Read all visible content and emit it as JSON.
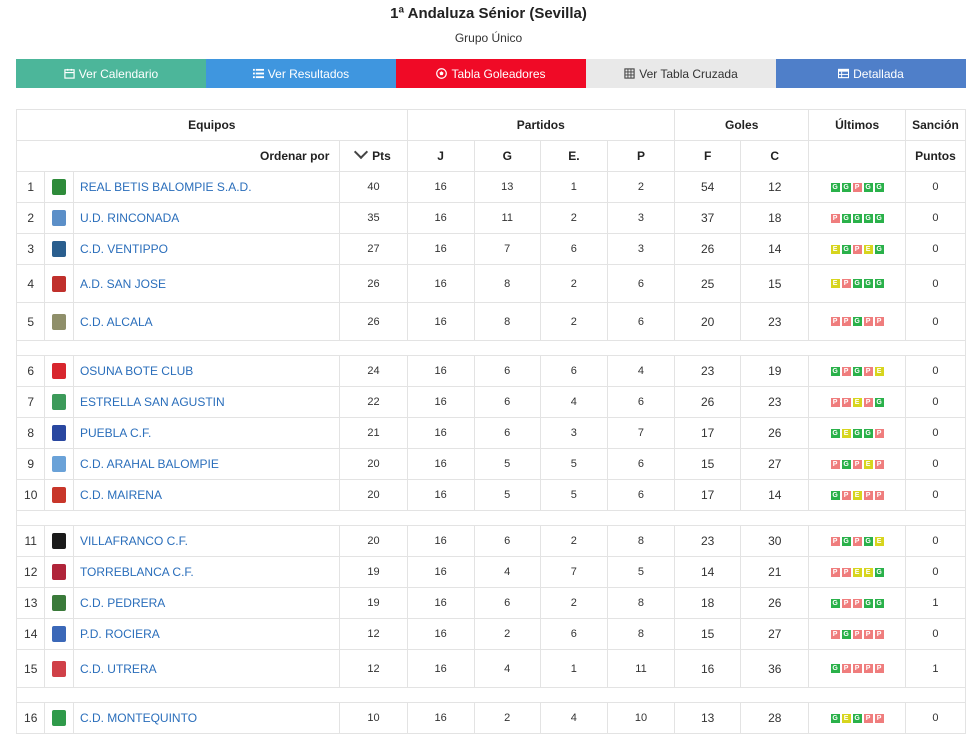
{
  "page": {
    "title": "1ª Andaluza Sénior (Sevilla)",
    "subtitle": "Grupo Único"
  },
  "buttons": [
    {
      "label": "Ver Calendario",
      "icon": "calendar-icon",
      "color": "#4cb69a"
    },
    {
      "label": "Ver Resultados",
      "icon": "list-icon",
      "color": "#3f96df"
    },
    {
      "label": "Tabla Goleadores",
      "icon": "soccer-ball-icon",
      "color": "#f00a26"
    },
    {
      "label": "Ver Tabla Cruzada",
      "icon": "grid-icon",
      "color": "#e9e9e9"
    },
    {
      "label": "Detallada",
      "icon": "table-icon",
      "color": "#4f7fc9"
    }
  ],
  "table": {
    "group_headers": {
      "equipos": "Equipos",
      "partidos": "Partidos",
      "goles": "Goles",
      "ultimos": "Últimos",
      "sancion": "Sanción"
    },
    "sub_headers": {
      "ordenar": "Ordenar por",
      "pts": "Pts",
      "j": "J",
      "g": "G",
      "e": "E.",
      "p": "P",
      "f": "F",
      "c": "C",
      "puntos": "Puntos"
    },
    "form_colors": {
      "G": "#2ab14a",
      "E": "#d7d51e",
      "P": "#ef7d7d"
    },
    "rows": [
      {
        "pos": "1",
        "team": "REAL BETIS BALOMPIE S.A.D.",
        "crest": "#2e8b3a",
        "pts": "40",
        "j": "16",
        "g": "13",
        "e": "1",
        "p": "2",
        "f": "54",
        "c": "12",
        "form": [
          "G",
          "G",
          "P",
          "G",
          "G"
        ],
        "sancion": "0"
      },
      {
        "pos": "2",
        "team": "U.D. RINCONADA",
        "crest": "#5b8fc8",
        "pts": "35",
        "j": "16",
        "g": "11",
        "e": "2",
        "p": "3",
        "f": "37",
        "c": "18",
        "form": [
          "P",
          "G",
          "G",
          "G",
          "G"
        ],
        "sancion": "0"
      },
      {
        "pos": "3",
        "team": "C.D. VENTIPPO",
        "crest": "#2a5e8e",
        "pts": "27",
        "j": "16",
        "g": "7",
        "e": "6",
        "p": "3",
        "f": "26",
        "c": "14",
        "form": [
          "E",
          "G",
          "P",
          "E",
          "G"
        ],
        "sancion": "0"
      },
      {
        "pos": "4",
        "team": "A.D. SAN JOSE",
        "crest": "#c0302c",
        "pts": "26",
        "j": "16",
        "g": "8",
        "e": "2",
        "p": "6",
        "f": "25",
        "c": "15",
        "form": [
          "E",
          "P",
          "G",
          "G",
          "G"
        ],
        "sancion": "0"
      },
      {
        "pos": "5",
        "team": "C.D. ALCALA",
        "crest": "#8f8f6a",
        "pts": "26",
        "j": "16",
        "g": "8",
        "e": "2",
        "p": "6",
        "f": "20",
        "c": "23",
        "form": [
          "P",
          "P",
          "G",
          "P",
          "P"
        ],
        "sancion": "0"
      },
      {
        "pos": "6",
        "team": "OSUNA BOTE CLUB",
        "crest": "#d8262e",
        "pts": "24",
        "j": "16",
        "g": "6",
        "e": "6",
        "p": "4",
        "f": "23",
        "c": "19",
        "form": [
          "G",
          "P",
          "G",
          "P",
          "E"
        ],
        "sancion": "0"
      },
      {
        "pos": "7",
        "team": "ESTRELLA SAN AGUSTIN",
        "crest": "#3c9a5a",
        "pts": "22",
        "j": "16",
        "g": "6",
        "e": "4",
        "p": "6",
        "f": "26",
        "c": "23",
        "form": [
          "P",
          "P",
          "E",
          "P",
          "G"
        ],
        "sancion": "0"
      },
      {
        "pos": "8",
        "team": "PUEBLA C.F.",
        "crest": "#2947a0",
        "pts": "21",
        "j": "16",
        "g": "6",
        "e": "3",
        "p": "7",
        "f": "17",
        "c": "26",
        "form": [
          "G",
          "E",
          "G",
          "G",
          "P"
        ],
        "sancion": "0"
      },
      {
        "pos": "9",
        "team": "C.D. ARAHAL BALOMPIE",
        "crest": "#6aa2d8",
        "pts": "20",
        "j": "16",
        "g": "5",
        "e": "5",
        "p": "6",
        "f": "15",
        "c": "27",
        "form": [
          "P",
          "G",
          "P",
          "E",
          "P"
        ],
        "sancion": "0"
      },
      {
        "pos": "10",
        "team": "C.D. MAIRENA",
        "crest": "#c8362a",
        "pts": "20",
        "j": "16",
        "g": "5",
        "e": "5",
        "p": "6",
        "f": "17",
        "c": "14",
        "form": [
          "G",
          "P",
          "E",
          "P",
          "P"
        ],
        "sancion": "0"
      },
      {
        "pos": "11",
        "team": "VILLAFRANCO C.F.",
        "crest": "#1a1a1a",
        "pts": "20",
        "j": "16",
        "g": "6",
        "e": "2",
        "p": "8",
        "f": "23",
        "c": "30",
        "form": [
          "P",
          "G",
          "P",
          "G",
          "E"
        ],
        "sancion": "0"
      },
      {
        "pos": "12",
        "team": "TORREBLANCA C.F.",
        "crest": "#b0243a",
        "pts": "19",
        "j": "16",
        "g": "4",
        "e": "7",
        "p": "5",
        "f": "14",
        "c": "21",
        "form": [
          "P",
          "P",
          "E",
          "E",
          "G"
        ],
        "sancion": "0"
      },
      {
        "pos": "13",
        "team": "C.D. PEDRERA",
        "crest": "#3a7a3a",
        "pts": "19",
        "j": "16",
        "g": "6",
        "e": "2",
        "p": "8",
        "f": "18",
        "c": "26",
        "form": [
          "G",
          "P",
          "P",
          "G",
          "G"
        ],
        "sancion": "1"
      },
      {
        "pos": "14",
        "team": "P.D. ROCIERA",
        "crest": "#3b68b8",
        "pts": "12",
        "j": "16",
        "g": "2",
        "e": "6",
        "p": "8",
        "f": "15",
        "c": "27",
        "form": [
          "P",
          "G",
          "P",
          "P",
          "P"
        ],
        "sancion": "0"
      },
      {
        "pos": "15",
        "team": "C.D. UTRERA",
        "crest": "#d04048",
        "pts": "12",
        "j": "16",
        "g": "4",
        "e": "1",
        "p": "11",
        "f": "16",
        "c": "36",
        "form": [
          "G",
          "P",
          "P",
          "P",
          "P"
        ],
        "sancion": "1"
      },
      {
        "pos": "16",
        "team": "C.D. MONTEQUINTO",
        "crest": "#2f9a4a",
        "pts": "10",
        "j": "16",
        "g": "2",
        "e": "4",
        "p": "10",
        "f": "13",
        "c": "28",
        "form": [
          "G",
          "E",
          "G",
          "P",
          "P"
        ],
        "sancion": "0"
      }
    ]
  }
}
